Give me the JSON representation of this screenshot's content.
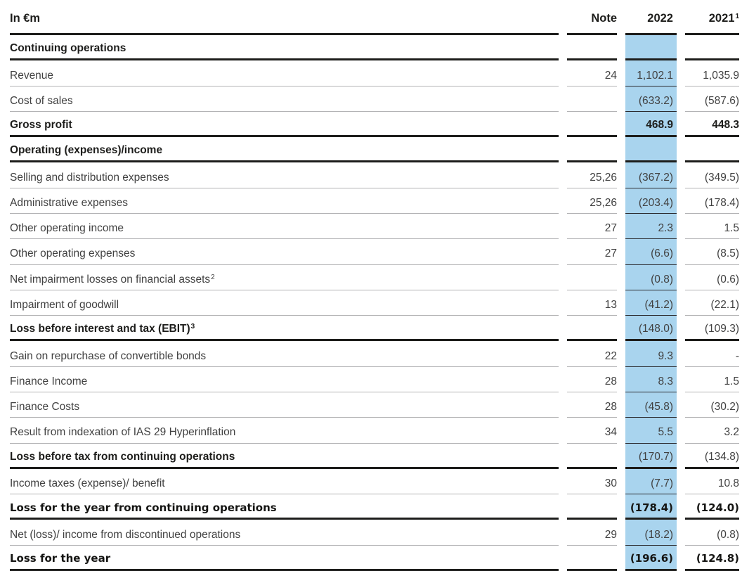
{
  "header": {
    "currency_label": "In €m",
    "note_col": "Note",
    "col_2022": "2022",
    "col_2021": "2021",
    "col_2021_sup": "1"
  },
  "rows": [
    {
      "label": "Continuing operations",
      "note": "",
      "v2022": "",
      "v2021": "",
      "style": "section"
    },
    {
      "label": "Revenue",
      "note": "24",
      "v2022": "1,102.1",
      "v2021": "1,035.9",
      "style": "normal"
    },
    {
      "label": "Cost of sales",
      "note": "",
      "v2022": "(633.2)",
      "v2021": "(587.6)",
      "style": "normal"
    },
    {
      "label": "Gross profit",
      "note": "",
      "v2022": "468.9",
      "v2021": "448.3",
      "style": "subtotal-strong"
    },
    {
      "label": "Operating (expenses)/income",
      "note": "",
      "v2022": "",
      "v2021": "",
      "style": "section"
    },
    {
      "label": "Selling and distribution expenses",
      "note": "25,26",
      "v2022": "(367.2)",
      "v2021": "(349.5)",
      "style": "normal"
    },
    {
      "label": "Administrative expenses",
      "note": "25,26",
      "v2022": "(203.4)",
      "v2021": "(178.4)",
      "style": "normal"
    },
    {
      "label": "Other operating income",
      "note": "27",
      "v2022": "2.3",
      "v2021": "1.5",
      "style": "normal"
    },
    {
      "label": "Other operating expenses",
      "note": "27",
      "v2022": "(6.6)",
      "v2021": "(8.5)",
      "style": "normal"
    },
    {
      "label": "Net impairment losses on financial assets",
      "label_sup": "2",
      "note": "",
      "v2022": "(0.8)",
      "v2021": "(0.6)",
      "style": "normal"
    },
    {
      "label": "Impairment of goodwill",
      "note": "13",
      "v2022": "(41.2)",
      "v2021": "(22.1)",
      "style": "normal"
    },
    {
      "label": "Loss before interest and tax (EBIT)",
      "label_sup": "3",
      "note": "",
      "v2022": "(148.0)",
      "v2021": "(109.3)",
      "style": "subtotal"
    },
    {
      "label": "Gain on repurchase of convertible bonds",
      "note": "22",
      "v2022": "9.3",
      "v2021": "-",
      "style": "normal"
    },
    {
      "label": "Finance Income",
      "note": "28",
      "v2022": "8.3",
      "v2021": "1.5",
      "style": "normal"
    },
    {
      "label": "Finance Costs",
      "note": "28",
      "v2022": "(45.8)",
      "v2021": "(30.2)",
      "style": "normal"
    },
    {
      "label": "Result from indexation of IAS 29 Hyperinflation",
      "note": "34",
      "v2022": "5.5",
      "v2021": "3.2",
      "style": "normal"
    },
    {
      "label": "Loss before tax from continuing operations",
      "note": "",
      "v2022": "(170.7)",
      "v2021": "(134.8)",
      "style": "subtotal"
    },
    {
      "label": "Income taxes (expense)/ benefit",
      "note": "30",
      "v2022": "(7.7)",
      "v2021": "10.8",
      "style": "normal"
    },
    {
      "label": "Loss for the year from continuing operations",
      "note": "",
      "v2022": "(178.4)",
      "v2021": "(124.0)",
      "style": "total"
    },
    {
      "label": "Net (loss)/ income from discontinued operations",
      "note": "29",
      "v2022": "(18.2)",
      "v2021": "(0.8)",
      "style": "normal"
    },
    {
      "label": "Loss for the year",
      "note": "",
      "v2022": "(196.6)",
      "v2021": "(124.8)",
      "style": "total"
    }
  ],
  "colors": {
    "highlight_2022_column": "#a9d4ee",
    "thick_rule": "#1d1d1b",
    "thin_rule": "#b2b2b4",
    "text_regular": "#414141",
    "text_strong": "#1d1d1b"
  }
}
